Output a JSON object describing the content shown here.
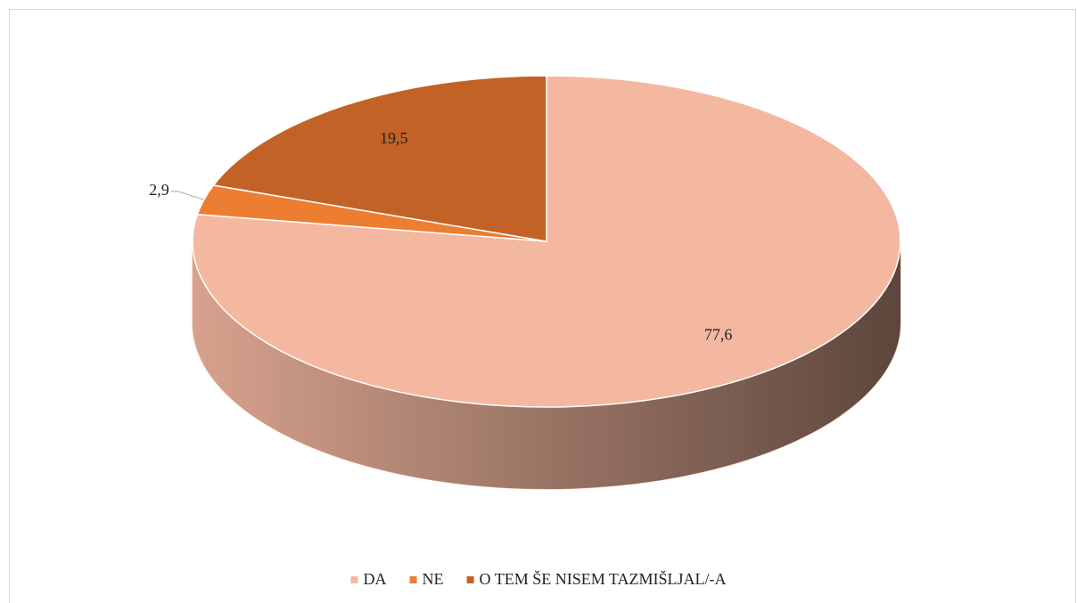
{
  "chart_data": {
    "type": "pie",
    "categories": [
      "DA",
      "NE",
      "O TEM ŠE NISEM TAZMIŠLJAL/-A"
    ],
    "values": [
      77.6,
      2.9,
      19.5
    ],
    "value_labels": [
      "77,6",
      "2,9",
      "19,5"
    ],
    "colors": [
      "#f4b8a0",
      "#ed7d31",
      "#c26226"
    ],
    "legend": "bottom"
  }
}
